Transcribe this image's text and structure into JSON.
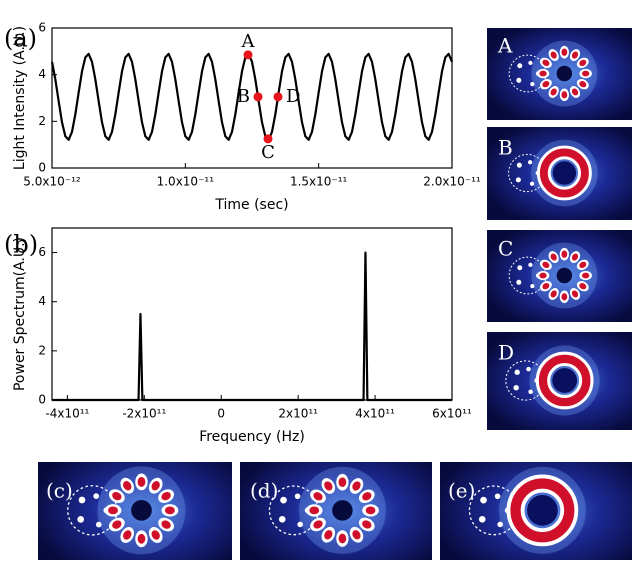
{
  "panel_labels": [
    "(a)",
    "(b)"
  ],
  "chart_data": [
    {
      "type": "line",
      "xlabel": "Time (sec)",
      "ylabel": "Light Intensity (A.U.)",
      "color": "#000000",
      "x": [
        5e-12,
        5.125e-12,
        5.25e-12,
        5.375e-12,
        5.5e-12,
        5.625e-12,
        5.75e-12,
        5.875e-12,
        6e-12,
        6.125e-12,
        6.25e-12,
        6.375e-12,
        6.5e-12,
        6.625e-12,
        6.75e-12,
        6.875e-12,
        7e-12,
        7.125e-12,
        7.25e-12,
        7.375e-12,
        7.5e-12,
        7.625e-12,
        7.75e-12,
        7.875e-12,
        8e-12,
        8.125e-12,
        8.25e-12,
        8.375e-12,
        8.5e-12,
        8.625e-12,
        8.75e-12,
        8.875e-12,
        9e-12,
        9.125e-12,
        9.25e-12,
        9.375e-12,
        9.5e-12,
        9.625e-12,
        9.75e-12,
        9.875e-12,
        1e-11,
        1.0125e-11,
        1.025e-11,
        1.0375e-11,
        1.05e-11,
        1.0625e-11,
        1.075e-11,
        1.0875e-11,
        1.1e-11,
        1.1125e-11,
        1.125e-11,
        1.1375e-11,
        1.15e-11,
        1.1625e-11,
        1.175e-11,
        1.1875e-11,
        1.2e-11,
        1.2125e-11,
        1.225e-11,
        1.2375e-11,
        1.25e-11,
        1.2625e-11,
        1.275e-11,
        1.2875e-11,
        1.3e-11,
        1.3125e-11,
        1.325e-11,
        1.3375e-11,
        1.35e-11,
        1.3625e-11,
        1.375e-11,
        1.3875e-11,
        1.4e-11,
        1.4125e-11,
        1.425e-11,
        1.4375e-11,
        1.45e-11,
        1.4625e-11,
        1.475e-11,
        1.4875e-11,
        1.5e-11,
        1.5125e-11,
        1.525e-11,
        1.5375e-11,
        1.55e-11,
        1.5625e-11,
        1.575e-11,
        1.5875e-11,
        1.6e-11,
        1.6125e-11,
        1.625e-11,
        1.6375e-11,
        1.65e-11,
        1.6625e-11,
        1.675e-11,
        1.6875e-11,
        1.7e-11,
        1.7125e-11,
        1.725e-11,
        1.7375e-11,
        1.75e-11,
        1.7625e-11,
        1.775e-11,
        1.7875e-11,
        1.8e-11,
        1.8125e-11,
        1.825e-11,
        1.8375e-11,
        1.85e-11,
        1.8625e-11,
        1.875e-11,
        1.8875e-11,
        1.9e-11,
        1.9125e-11,
        1.925e-11,
        1.9375e-11,
        1.95e-11,
        1.9625e-11,
        1.975e-11,
        1.9875e-11,
        2e-11
      ],
      "values": [
        4.55,
        3.8,
        2.86,
        1.96,
        1.36,
        1.21,
        1.55,
        2.3,
        3.24,
        4.14,
        4.74,
        4.89,
        4.55,
        3.8,
        2.86,
        1.96,
        1.36,
        1.21,
        1.55,
        2.3,
        3.24,
        4.14,
        4.74,
        4.89,
        4.55,
        3.8,
        2.86,
        1.96,
        1.36,
        1.21,
        1.55,
        2.3,
        3.24,
        4.14,
        4.74,
        4.89,
        4.55,
        3.8,
        2.86,
        1.96,
        1.36,
        1.21,
        1.55,
        2.3,
        3.24,
        4.14,
        4.74,
        4.89,
        4.55,
        3.8,
        2.86,
        1.96,
        1.36,
        1.21,
        1.55,
        2.3,
        3.24,
        4.14,
        4.74,
        4.89,
        4.55,
        3.8,
        2.86,
        1.96,
        1.36,
        1.21,
        1.55,
        2.3,
        3.24,
        4.14,
        4.74,
        4.89,
        4.55,
        3.8,
        2.86,
        1.96,
        1.36,
        1.21,
        1.55,
        2.3,
        3.24,
        4.14,
        4.74,
        4.89,
        4.55,
        3.8,
        2.86,
        1.96,
        1.36,
        1.21,
        1.55,
        2.3,
        3.24,
        4.14,
        4.74,
        4.89,
        4.55,
        3.8,
        2.86,
        1.96,
        1.36,
        1.21,
        1.55,
        2.3,
        3.24,
        4.14,
        4.74,
        4.89,
        4.55,
        3.8,
        2.86,
        1.96,
        1.36,
        1.21,
        1.55,
        2.3,
        3.24,
        4.14,
        4.74,
        4.89,
        4.55
      ],
      "points": {
        "labels": [
          "A",
          "B",
          "C",
          "D"
        ],
        "x": [
          1.235e-11,
          1.2725e-11,
          1.31e-11,
          1.3475e-11
        ],
        "values": [
          4.85,
          3.05,
          1.25,
          3.05
        ],
        "color": "#e8141c"
      },
      "xlim": [
        5e-12,
        2e-11
      ],
      "xticks": [
        {
          "value": 5e-12,
          "label": "5.0x10⁻¹²"
        },
        {
          "value": 1e-11,
          "label": "1.0x10⁻¹¹"
        },
        {
          "value": 1.5e-11,
          "label": "1.5x10⁻¹¹"
        },
        {
          "value": 2e-11,
          "label": "2.0x10⁻¹¹"
        }
      ],
      "ylim": [
        0,
        6
      ],
      "yticks": [
        0,
        2,
        4,
        6
      ]
    },
    {
      "type": "line",
      "xlabel": "Frequency  (Hz)",
      "ylabel": "Power Spectrum(A.U.)",
      "color": "#000000",
      "x": [
        -440000000000.0,
        -215000000000.0,
        -210000000000.0,
        -205000000000.0,
        370000000000.0,
        375000000000.0,
        380000000000.0,
        600000000000.0
      ],
      "values": [
        0,
        0,
        3.5,
        0,
        0,
        6.0,
        0,
        0
      ],
      "xlim": [
        -440000000000.0,
        600000000000.0
      ],
      "xticks": [
        {
          "value": -400000000000.0,
          "label": "-4x10¹¹"
        },
        {
          "value": -200000000000.0,
          "label": "-2x10¹¹"
        },
        0,
        {
          "value": 200000000000.0,
          "label": "2x10¹¹"
        },
        {
          "value": 400000000000.0,
          "label": "4x10¹¹"
        },
        {
          "value": 600000000000.0,
          "label": "6x10¹¹"
        }
      ],
      "ylim": [
        0,
        7
      ],
      "yticks": [
        0,
        2,
        4,
        6
      ]
    }
  ],
  "images": [
    "A",
    "B",
    "C",
    "D",
    "(c)",
    "(d)",
    "(e)"
  ]
}
